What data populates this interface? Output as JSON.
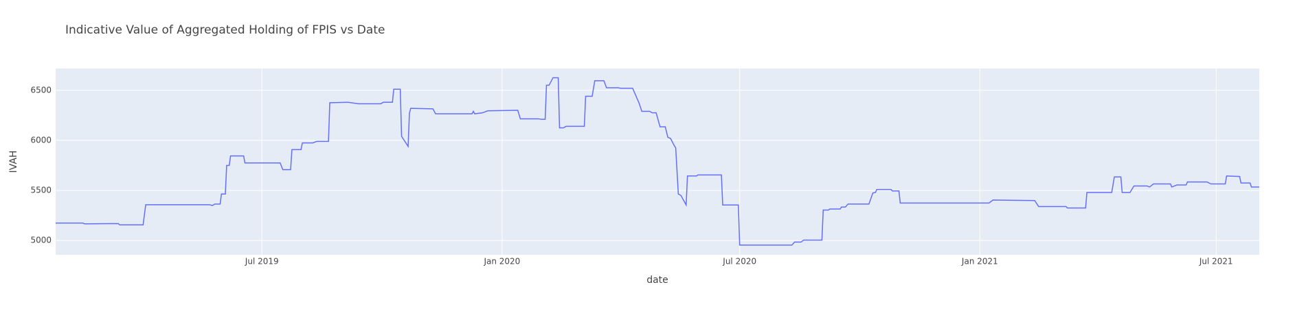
{
  "chart_data": {
    "type": "line",
    "title": "Indicative Value of Aggregated Holding of FPIS vs Date",
    "x_label": "date",
    "y_label": "IVAH",
    "x": [
      "2019-01-24",
      "2019-02-14",
      "2019-02-15",
      "2019-03-13",
      "2019-03-14",
      "2019-04-01",
      "2019-04-03",
      "2019-05-22",
      "2019-05-24",
      "2019-05-26",
      "2019-05-30",
      "2019-05-31",
      "2019-06-03",
      "2019-06-04",
      "2019-06-06",
      "2019-06-07",
      "2019-06-17",
      "2019-06-18",
      "2019-07-15",
      "2019-07-17",
      "2019-07-23",
      "2019-07-24",
      "2019-07-31",
      "2019-08-01",
      "2019-08-09",
      "2019-08-12",
      "2019-08-21",
      "2019-08-22",
      "2019-09-05",
      "2019-09-13",
      "2019-09-30",
      "2019-10-02",
      "2019-10-09",
      "2019-10-10",
      "2019-10-15",
      "2019-10-16",
      "2019-10-21",
      "2019-10-22",
      "2019-10-23",
      "2019-11-09",
      "2019-11-11",
      "2019-12-09",
      "2019-12-10",
      "2019-12-11",
      "2019-12-17",
      "2019-12-21",
      "2020-01-13",
      "2020-01-15",
      "2020-01-29",
      "2020-01-31",
      "2020-02-03",
      "2020-02-04",
      "2020-02-06",
      "2020-02-09",
      "2020-02-13",
      "2020-02-14",
      "2020-02-17",
      "2020-02-19",
      "2020-03-04",
      "2020-03-05",
      "2020-03-10",
      "2020-03-12",
      "2020-03-19",
      "2020-03-21",
      "2020-03-30",
      "2020-04-01",
      "2020-04-10",
      "2020-04-15",
      "2020-04-17",
      "2020-04-23",
      "2020-04-25",
      "2020-04-28",
      "2020-05-01",
      "2020-05-05",
      "2020-05-07",
      "2020-05-09",
      "2020-05-12",
      "2020-05-13",
      "2020-05-15",
      "2020-05-17",
      "2020-05-21",
      "2020-05-22",
      "2020-05-29",
      "2020-05-30",
      "2020-06-17",
      "2020-06-18",
      "2020-06-30",
      "2020-07-01",
      "2020-08-10",
      "2020-08-12",
      "2020-08-17",
      "2020-08-19",
      "2020-09-02",
      "2020-09-03",
      "2020-09-07",
      "2020-09-08",
      "2020-09-16",
      "2020-09-17",
      "2020-09-20",
      "2020-09-22",
      "2020-10-08",
      "2020-10-11",
      "2020-10-13",
      "2020-10-14",
      "2020-10-25",
      "2020-10-26",
      "2020-10-31",
      "2020-11-01",
      "2021-01-08",
      "2021-01-11",
      "2021-02-12",
      "2021-02-15",
      "2021-03-08",
      "2021-03-09",
      "2021-03-23",
      "2021-03-24",
      "2021-04-12",
      "2021-04-14",
      "2021-04-19",
      "2021-04-20",
      "2021-04-26",
      "2021-04-29",
      "2021-05-09",
      "2021-05-11",
      "2021-05-14",
      "2021-05-27",
      "2021-05-28",
      "2021-06-01",
      "2021-06-08",
      "2021-06-09",
      "2021-06-24",
      "2021-06-27",
      "2021-07-08",
      "2021-07-09",
      "2021-07-19",
      "2021-07-20",
      "2021-07-27",
      "2021-07-28",
      "2021-08-03"
    ],
    "series": [
      {
        "name": "IVAH",
        "color": "#636efa",
        "values": [
          5175,
          5175,
          5167,
          5170,
          5157,
          5157,
          5358,
          5358,
          5350,
          5365,
          5365,
          5465,
          5465,
          5750,
          5750,
          5845,
          5845,
          5775,
          5775,
          5708,
          5708,
          5908,
          5908,
          5975,
          5975,
          5990,
          5990,
          6375,
          6380,
          6365,
          6365,
          6380,
          6380,
          6510,
          6510,
          6040,
          5940,
          6270,
          6320,
          6315,
          6265,
          6265,
          6290,
          6265,
          6275,
          6295,
          6300,
          6215,
          6215,
          6210,
          6210,
          6550,
          6550,
          6625,
          6625,
          6125,
          6125,
          6140,
          6140,
          6440,
          6440,
          6595,
          6595,
          6525,
          6525,
          6520,
          6520,
          6370,
          6290,
          6290,
          6275,
          6275,
          6135,
          6135,
          6030,
          6020,
          5945,
          5925,
          5465,
          5450,
          5355,
          5645,
          5645,
          5655,
          5655,
          5355,
          5355,
          4955,
          4955,
          4985,
          4985,
          5005,
          5005,
          5305,
          5305,
          5315,
          5315,
          5335,
          5335,
          5365,
          5365,
          5475,
          5480,
          5510,
          5510,
          5495,
          5495,
          5375,
          5375,
          5405,
          5400,
          5340,
          5340,
          5325,
          5325,
          5480,
          5480,
          5635,
          5635,
          5480,
          5480,
          5545,
          5545,
          5535,
          5565,
          5565,
          5535,
          5555,
          5555,
          5585,
          5585,
          5565,
          5565,
          5645,
          5640,
          5575,
          5575,
          5535,
          5535
        ]
      }
    ],
    "xlim": [
      "2019-01-24",
      "2021-08-03"
    ],
    "xticks": [
      {
        "value": "2019-07-01",
        "label": "Jul 2019"
      },
      {
        "value": "2020-01-01",
        "label": "Jan 2020"
      },
      {
        "value": "2020-07-01",
        "label": "Jul 2020"
      },
      {
        "value": "2021-01-01",
        "label": "Jan 2021"
      },
      {
        "value": "2021-07-01",
        "label": "Jul 2021"
      }
    ],
    "ylim": [
      4858,
      6717
    ],
    "yticks": [
      5000,
      5500,
      6000,
      6500
    ],
    "grid": true
  }
}
